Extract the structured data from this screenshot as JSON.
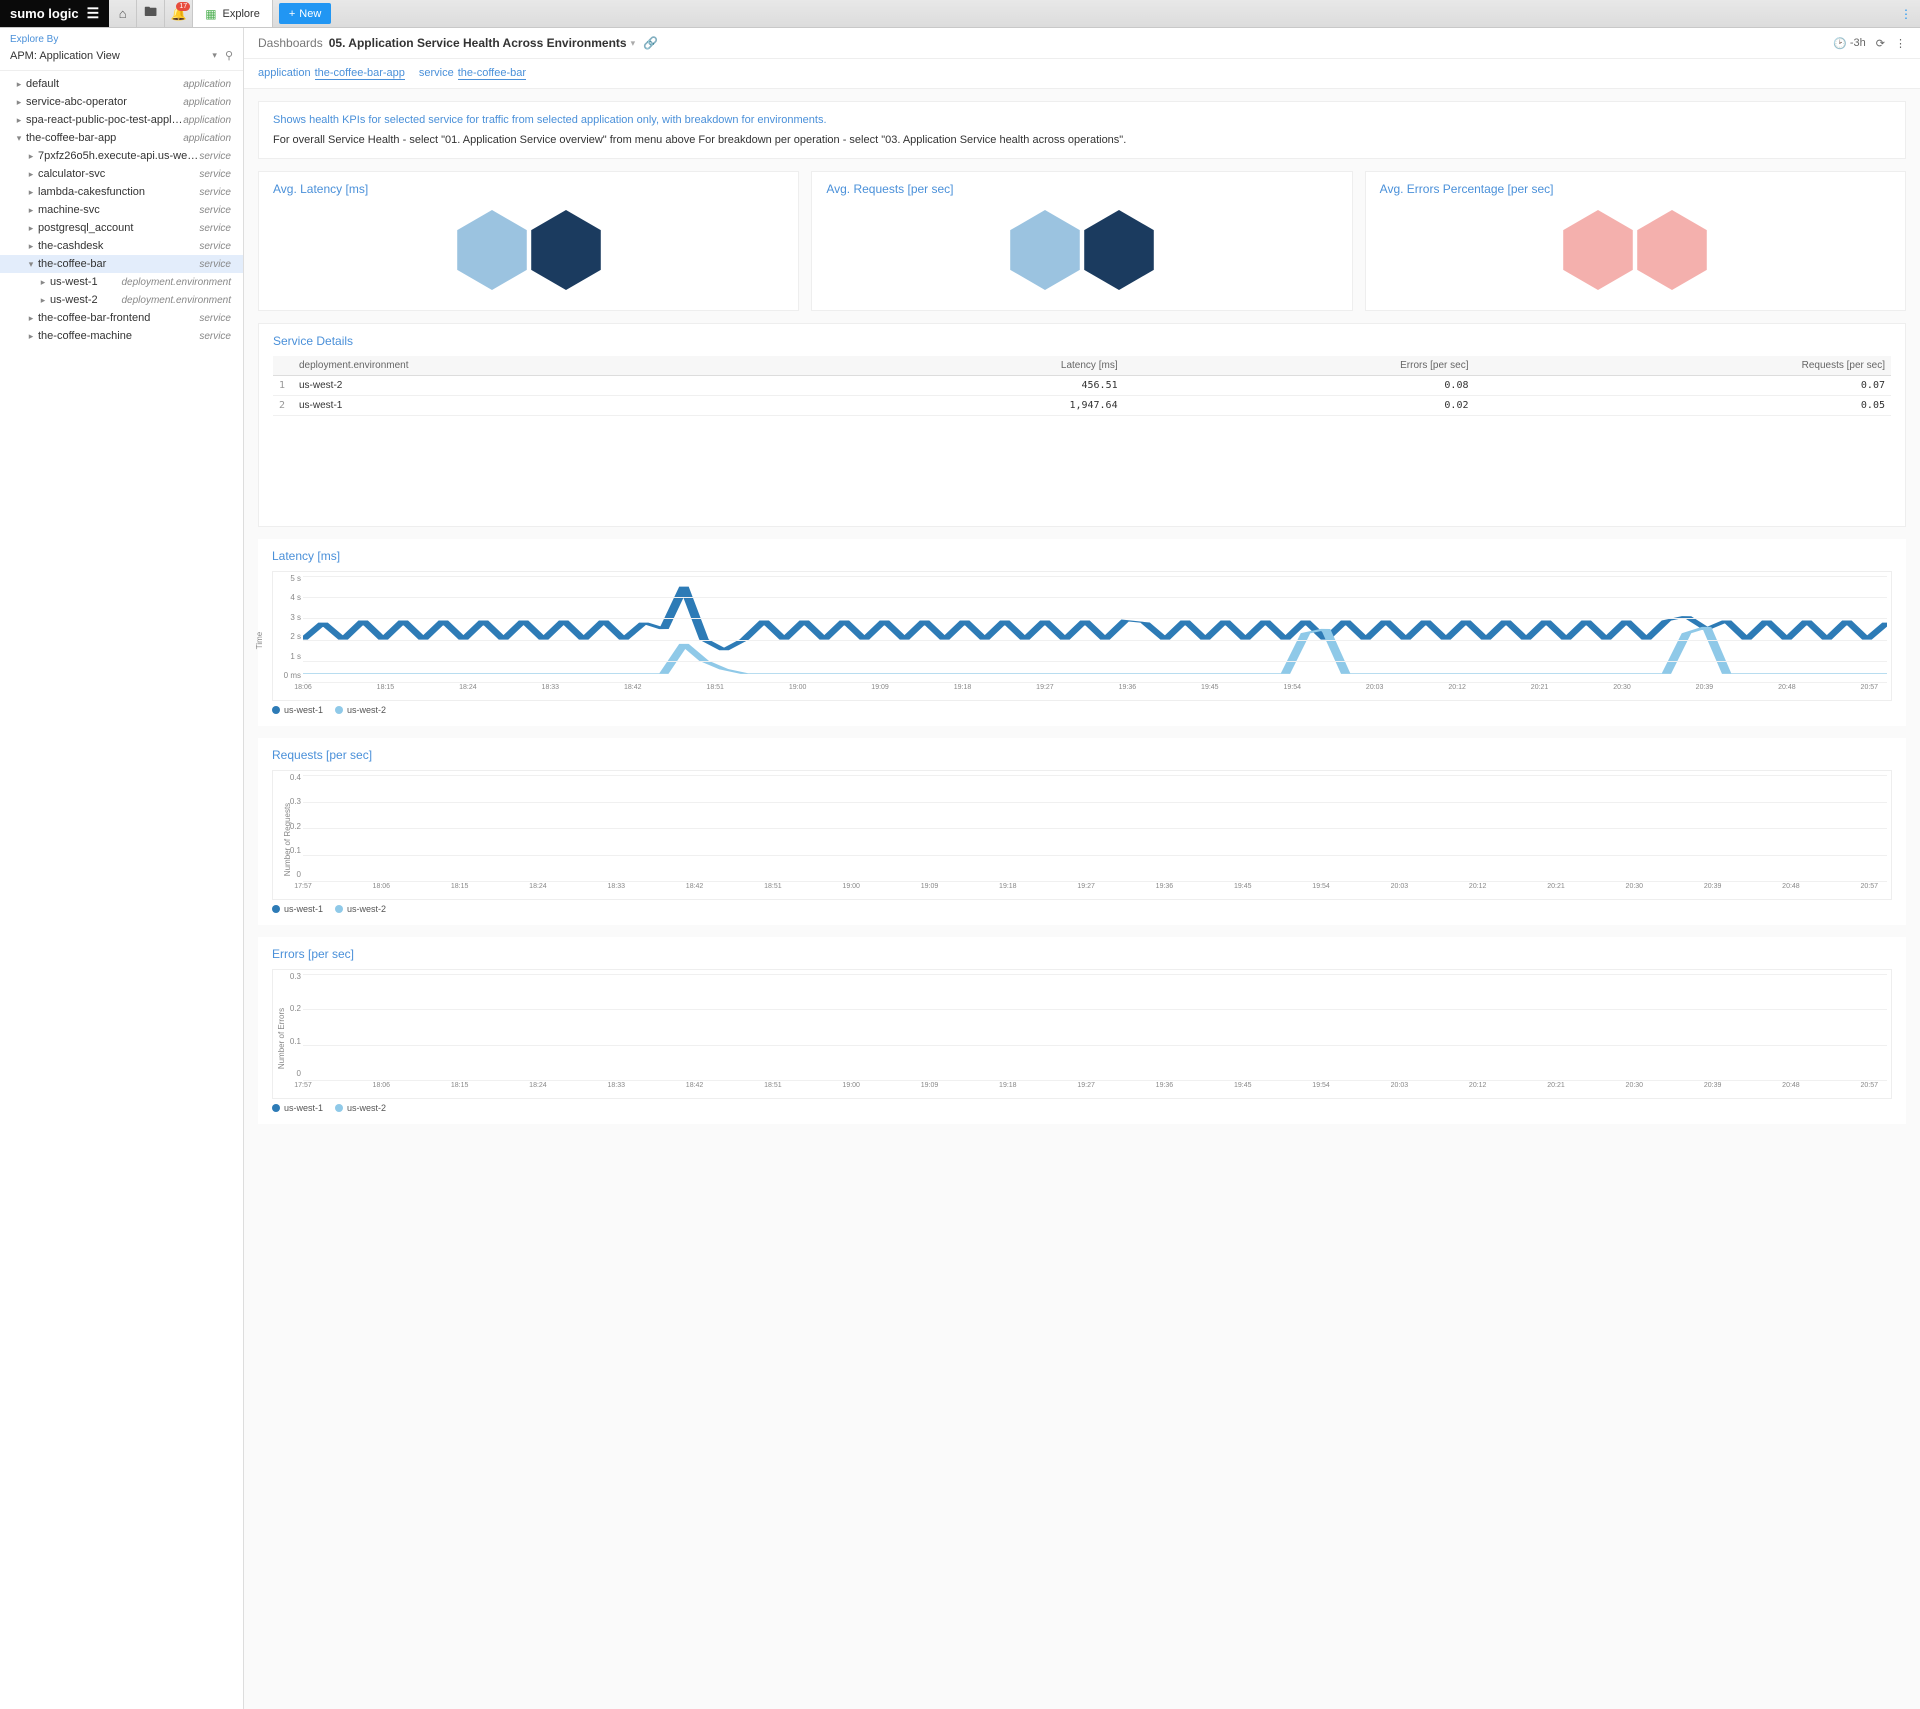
{
  "brand": "sumo logic",
  "tab_label": "Explore",
  "new_btn": "New",
  "notification_count": "17",
  "sidebar": {
    "explore_by": "Explore By",
    "view": "APM: Application View",
    "items": [
      {
        "label": "default",
        "tag": "application",
        "depth": 0,
        "toggle": "▸"
      },
      {
        "label": "service-abc-operator",
        "tag": "application",
        "depth": 0,
        "toggle": "▸"
      },
      {
        "label": "spa-react-public-poc-test-applicat...",
        "tag": "application",
        "depth": 0,
        "toggle": "▸"
      },
      {
        "label": "the-coffee-bar-app",
        "tag": "application",
        "depth": 0,
        "toggle": "▾"
      },
      {
        "label": "7pxfz26o5h.execute-api.us-west-2.a...",
        "tag": "service",
        "depth": 1,
        "toggle": "▸"
      },
      {
        "label": "calculator-svc",
        "tag": "service",
        "depth": 1,
        "toggle": "▸"
      },
      {
        "label": "lambda-cakesfunction",
        "tag": "service",
        "depth": 1,
        "toggle": "▸"
      },
      {
        "label": "machine-svc",
        "tag": "service",
        "depth": 1,
        "toggle": "▸"
      },
      {
        "label": "postgresql_account",
        "tag": "service",
        "depth": 1,
        "toggle": "▸"
      },
      {
        "label": "the-cashdesk",
        "tag": "service",
        "depth": 1,
        "toggle": "▸"
      },
      {
        "label": "the-coffee-bar",
        "tag": "service",
        "depth": 1,
        "toggle": "▾",
        "selected": true
      },
      {
        "label": "us-west-1",
        "tag": "deployment.environment",
        "depth": 2,
        "toggle": "▸"
      },
      {
        "label": "us-west-2",
        "tag": "deployment.environment",
        "depth": 2,
        "toggle": "▸"
      },
      {
        "label": "the-coffee-bar-frontend",
        "tag": "service",
        "depth": 1,
        "toggle": "▸"
      },
      {
        "label": "the-coffee-machine",
        "tag": "service",
        "depth": 1,
        "toggle": "▸"
      }
    ]
  },
  "crumb": {
    "label": "Dashboards",
    "title": "05. Application Service Health Across Environments",
    "time": "-3h"
  },
  "filters": [
    {
      "k": "application",
      "v": "the-coffee-bar-app"
    },
    {
      "k": "service",
      "v": "the-coffee-bar"
    }
  ],
  "desc": {
    "highlight": "Shows health KPIs for selected service for traffic from selected application only, with breakdown for environments.",
    "body": "For overall Service Health - select \"01. Application Service overview\" from menu above For breakdown per operation - select \"03. Application Service health across operations\"."
  },
  "kpis": [
    {
      "title": "Avg. Latency [ms]",
      "colors": [
        "#9bc3e0",
        "#1b3b5f"
      ]
    },
    {
      "title": "Avg. Requests [per sec]",
      "colors": [
        "#9bc3e0",
        "#1b3b5f"
      ]
    },
    {
      "title": "Avg. Errors Percentage [per sec]",
      "colors": [
        "#f4b0ad",
        "#f4b0ad"
      ]
    }
  ],
  "service_details": {
    "title": "Service Details",
    "columns": [
      "",
      "deployment.environment",
      "Latency [ms]",
      "Errors [per sec]",
      "Requests [per sec]"
    ],
    "rows": [
      [
        "1",
        "us-west-2",
        "456.51",
        "0.08",
        "0.07"
      ],
      [
        "2",
        "us-west-1",
        "1,947.64",
        "0.02",
        "0.05"
      ]
    ]
  },
  "charts": {
    "latency": {
      "title": "Latency [ms]",
      "ylabel": "Time",
      "yticks": [
        "5 s",
        "4 s",
        "3 s",
        "2 s",
        "1 s",
        "0 ms"
      ],
      "legend": [
        {
          "label": "us-west-1",
          "color": "#2d7bb6"
        },
        {
          "label": "us-west-2",
          "color": "#8fc9e8"
        }
      ],
      "color1": "#2d7bb6",
      "color2": "#8fc9e8",
      "series1": [
        2.0,
        2.8,
        2.0,
        2.9,
        2.0,
        2.9,
        2.0,
        2.9,
        2.0,
        2.9,
        2.0,
        2.9,
        2.0,
        2.9,
        2.0,
        2.9,
        2.0,
        2.8,
        2.5,
        4.5,
        2.0,
        1.5,
        2.0,
        2.9,
        2.0,
        2.9,
        2.0,
        2.9,
        2.0,
        2.9,
        2.0,
        2.9,
        2.0,
        2.9,
        2.0,
        2.9,
        2.0,
        2.9,
        2.0,
        2.9,
        2.0,
        2.9,
        2.8,
        2.0,
        2.9,
        2.0,
        2.9,
        2.0,
        2.9,
        2.0,
        2.9,
        2.0,
        2.9,
        2.0,
        2.9,
        2.0,
        2.9,
        2.0,
        2.9,
        2.0,
        2.9,
        2.0,
        2.9,
        2.0,
        2.9,
        2.0,
        2.9,
        2.0,
        2.9,
        3.1,
        2.5,
        2.9,
        2.0,
        2.9,
        2.0,
        2.9,
        2.0,
        2.9,
        2.0,
        2.8
      ],
      "series2": [
        0.4,
        0.4,
        0.4,
        0.4,
        0.4,
        0.4,
        0.4,
        0.4,
        0.4,
        0.4,
        0.4,
        0.4,
        0.4,
        0.4,
        0.4,
        0.4,
        0.4,
        0.4,
        0.4,
        1.8,
        1.0,
        0.6,
        0.4,
        0.4,
        0.4,
        0.4,
        0.4,
        0.4,
        0.4,
        0.4,
        0.4,
        0.4,
        0.4,
        0.4,
        0.4,
        0.4,
        0.4,
        0.4,
        0.4,
        0.4,
        0.4,
        0.4,
        0.4,
        0.4,
        0.4,
        0.4,
        0.4,
        0.4,
        0.4,
        0.4,
        2.3,
        2.5,
        0.4,
        0.4,
        0.4,
        0.4,
        0.4,
        0.4,
        0.4,
        0.4,
        0.4,
        0.4,
        0.4,
        0.4,
        0.4,
        0.4,
        0.4,
        0.4,
        0.4,
        2.3,
        2.6,
        0.4,
        0.4,
        0.4,
        0.4,
        0.4,
        0.4,
        0.4,
        0.4,
        0.4
      ]
    },
    "requests": {
      "title": "Requests [per sec]",
      "ylabel": "Number of Requests",
      "yticks": [
        "0.4",
        "0.3",
        "0.2",
        "0.1",
        "0"
      ],
      "ymax": 0.4,
      "legend": [
        {
          "label": "us-west-1",
          "color": "#2d7bb6"
        },
        {
          "label": "us-west-2",
          "color": "#8fc9e8"
        }
      ],
      "color1": "#2d7bb6",
      "color2": "#8fc9e8"
    },
    "errors": {
      "title": "Errors [per sec]",
      "ylabel": "Number of Errors",
      "yticks": [
        "0.3",
        "0.2",
        "0.1",
        "0"
      ],
      "ymax": 0.3,
      "legend": [
        {
          "label": "us-west-1",
          "color": "#2d7bb6"
        },
        {
          "label": "us-west-2",
          "color": "#8fc9e8"
        }
      ],
      "color1": "#2d7bb6",
      "color2": "#8fc9e8"
    },
    "xticks": [
      "18:06",
      "18:15",
      "18:24",
      "18:33",
      "18:42",
      "18:51",
      "19:00",
      "19:09",
      "19:18",
      "19:27",
      "19:36",
      "19:45",
      "19:54",
      "20:03",
      "20:12",
      "20:21",
      "20:30",
      "20:39",
      "20:48",
      "20:57"
    ],
    "xticks_bars": [
      "17:57",
      "18:06",
      "18:15",
      "18:24",
      "18:33",
      "18:42",
      "18:51",
      "19:00",
      "19:09",
      "19:18",
      "19:27",
      "19:36",
      "19:45",
      "19:54",
      "20:03",
      "20:12",
      "20:21",
      "20:30",
      "20:39",
      "20:48",
      "20:57"
    ]
  }
}
